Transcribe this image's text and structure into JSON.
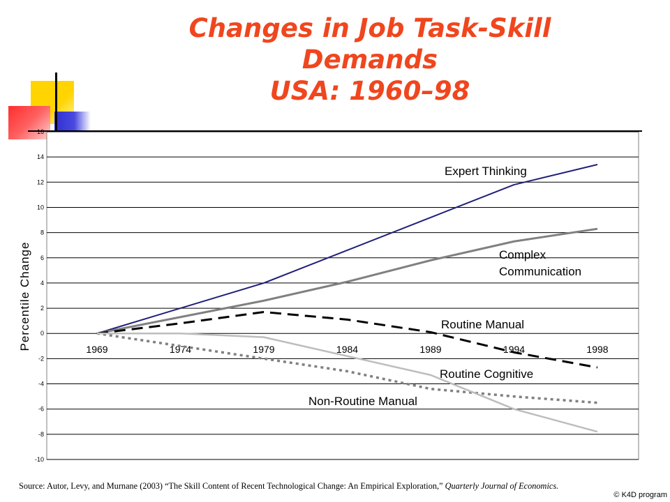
{
  "title": {
    "line1": "Changes in Job Task-Skill",
    "line2": "Demands",
    "line3": "USA: 1960–98"
  },
  "source": {
    "prefix": "Source: Autor, Levy, and Murnane (2003) “The Skill Content of Recent Technological Change: An Empirical Exploration,” ",
    "journal": "Quarterly Journal of Economics."
  },
  "copyright": "© K4D program",
  "colors": {
    "title": "#f0461e",
    "expert_thinking": "#1f1f7a",
    "complex_communication": "#808080",
    "routine_manual": "#000000",
    "routine_cognitive": "#808080",
    "non_routine_manual": "#bdbdbd",
    "deco_yellow": "#ffd400",
    "deco_blue": "#2f2fd0",
    "deco_red": "#ff3c3c"
  },
  "chart_data": {
    "type": "line",
    "ylabel": "Percentile Change",
    "ylim": [
      -10,
      16
    ],
    "yticks": [
      16,
      14,
      12,
      10,
      8,
      6,
      4,
      2,
      0,
      -2,
      -4,
      -6,
      -8,
      -10
    ],
    "categories": [
      "1969",
      "1974",
      "1979",
      "1984",
      "1989",
      "1994",
      "1998"
    ],
    "grid": true,
    "series": [
      {
        "name": "Expert Thinking",
        "style": "solid",
        "values": [
          0,
          2.0,
          4.0,
          6.6,
          9.2,
          11.8,
          13.4
        ]
      },
      {
        "name": "Complex Communication",
        "style": "solid",
        "values": [
          0,
          1.3,
          2.6,
          4.1,
          5.8,
          7.3,
          8.3
        ]
      },
      {
        "name": "Routine Manual",
        "style": "long-dash",
        "values": [
          0,
          0.8,
          1.7,
          1.1,
          0.1,
          -1.5,
          -2.7
        ]
      },
      {
        "name": "Routine Cognitive",
        "style": "dotted",
        "values": [
          0,
          -1.0,
          -2.0,
          -3.0,
          -4.4,
          -5.0,
          -5.5
        ]
      },
      {
        "name": "Non-Routine Manual",
        "style": "solid",
        "values": [
          0,
          0,
          -0.3,
          -1.8,
          -3.3,
          -6.0,
          -7.8
        ]
      }
    ]
  }
}
